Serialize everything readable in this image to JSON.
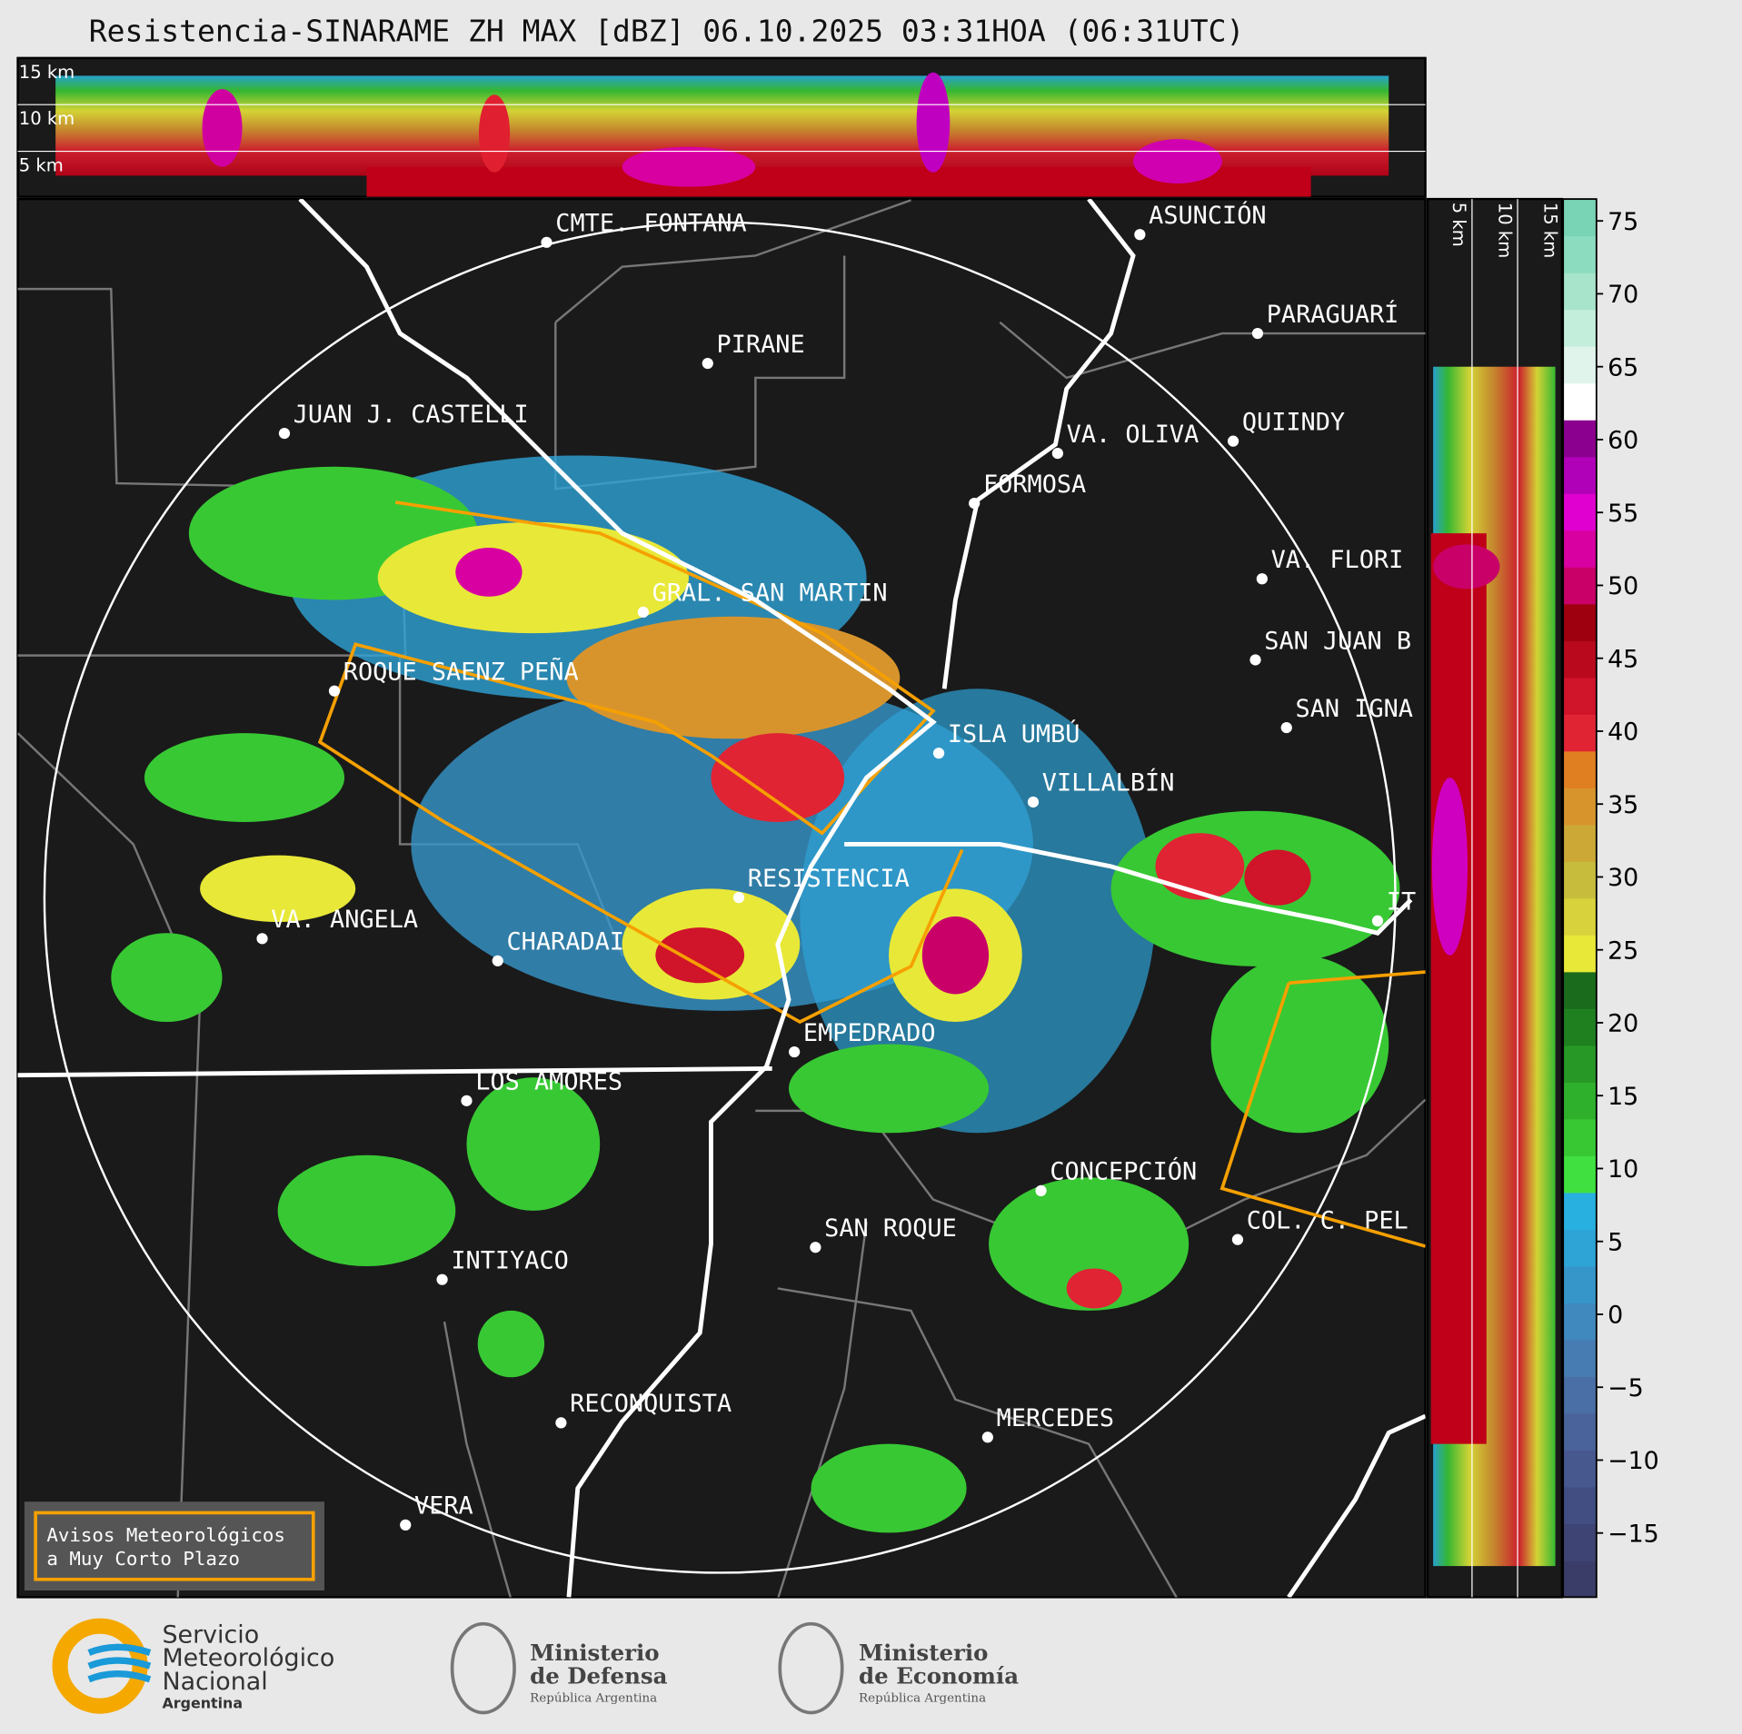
{
  "header": {
    "title": "Resistencia-SINARAME ZH MAX [dBZ] 06.10.2025 03:31HOA (06:31UTC)"
  },
  "top_panel": {
    "labels": [
      "15 km",
      "10 km",
      "5 km"
    ]
  },
  "side_panel": {
    "labels": [
      "5 km",
      "10 km",
      "15 km"
    ]
  },
  "map": {
    "cities": [
      "CMTE. FONTANA",
      "PIRANE",
      "JUAN J. CASTELLI",
      "ASUNCIÓN",
      "PARAGUARÍ",
      "VA. OLIVA",
      "QUIINDY",
      "FORMOSA",
      "VA. FLORI",
      "GRAL. SAN MARTIN",
      "SAN JUAN B",
      "ROQUE SAENZ PEÑA",
      "SAN IGNA",
      "ISLA UMBÚ",
      "VILLALBÍN",
      "RESISTENCIA",
      "IT",
      "VA. ANGELA",
      "CHARADAI",
      "EMPEDRADO",
      "LOS AMORES",
      "CONCEPCIÓN",
      "COL. C. PEL",
      "SAN ROQUE",
      "INTIYACO",
      "RECONQUISTA",
      "MERCEDES",
      "VERA"
    ],
    "legend": [
      "Avisos Meteorológicos",
      "a Muy Corto Plazo"
    ]
  },
  "colorbar": {
    "ylim": [
      -19.4,
      76.5
    ],
    "ticks": [
      75,
      70,
      65,
      60,
      55,
      50,
      45,
      40,
      35,
      30,
      25,
      20,
      15,
      10,
      5,
      0,
      {
        "value": -5,
        "label": "−5"
      },
      {
        "value": -10,
        "label": "−10"
      },
      {
        "value": -15,
        "label": "−15"
      }
    ],
    "colors": [
      "#3a3d68",
      "#3e4575",
      "#424e82",
      "#46588e",
      "#4a639a",
      "#4a6fa6",
      "#467cb2",
      "#3f89be",
      "#3696ca",
      "#2ea3d6",
      "#28b0e0",
      "#40e040",
      "#38c834",
      "#2fb02c",
      "#279826",
      "#1f8020",
      "#1a6c1c",
      "#e8e838",
      "#d8d23c",
      "#c8bc3c",
      "#cca836",
      "#d8942c",
      "#e07e22",
      "#e02434",
      "#d0142a",
      "#b80a1c",
      "#9e0010",
      "#c80068",
      "#d800a0",
      "#e000d0",
      "#b000b8",
      "#8c0090",
      "#ffffff",
      "#e0f4ec",
      "#c4eedc",
      "#a8e4cc",
      "#8cdcc0",
      "#78d4b4"
    ]
  },
  "footer": {
    "smn": [
      "Servicio",
      "Meteorológico",
      "Nacional",
      "Argentina"
    ],
    "defensa": [
      "Ministerio",
      "de Defensa",
      "República Argentina"
    ],
    "economia": [
      "Ministerio",
      "de Economía",
      "República Argentina"
    ]
  }
}
